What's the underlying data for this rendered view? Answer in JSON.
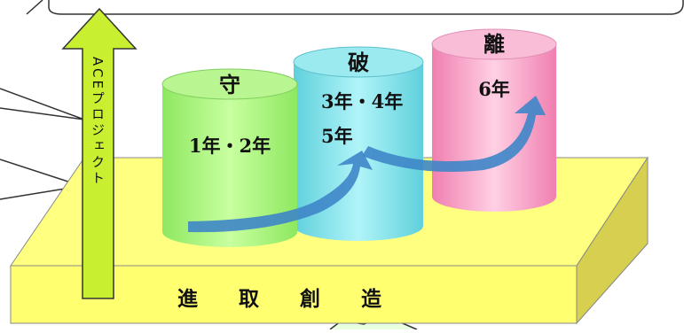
{
  "platform": {
    "label": "進　　取　　創　　造"
  },
  "arrow": {
    "label": "ACEプロジェクト"
  },
  "stages": [
    {
      "title": "守",
      "text_lines": [
        "1年・2年"
      ]
    },
    {
      "title": "破",
      "text_lines": [
        "3年・4年",
        "5年"
      ]
    },
    {
      "title": "離",
      "text_lines": [
        "6年"
      ]
    }
  ],
  "colors": {
    "platform_top": "#FFFF80",
    "platform_side": "#D6CF50",
    "cylinder_shu": "#A8F07A",
    "cylinder_ha": "#7FDFE8",
    "cylinder_ri": "#F5A2C6",
    "arrow_fill": "#C8F030",
    "curve_arrow": "#3E86C8"
  }
}
